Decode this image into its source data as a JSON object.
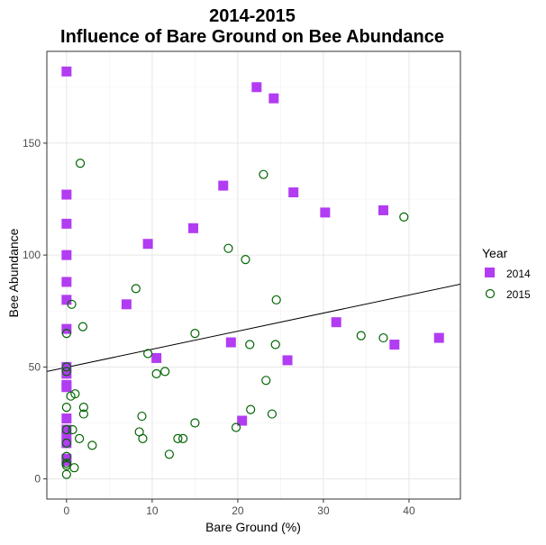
{
  "chart_data": {
    "type": "scatter",
    "title_line1": "2014-2015",
    "title_line2": "Influence of Bare Ground on Bee Abundance",
    "xlabel": "Bare Ground (%)",
    "ylabel": "Bee Abundance",
    "xlim": [
      -2.3,
      46.0
    ],
    "ylim": [
      -9.0,
      191.0
    ],
    "x_ticks": [
      0,
      10,
      20,
      30,
      40
    ],
    "y_ticks": [
      0,
      50,
      100,
      150
    ],
    "grid": true,
    "legend": {
      "title": "Year",
      "placement": "right"
    },
    "series": [
      {
        "name": "2014",
        "marker": "square",
        "color": "#b23cf2",
        "points": [
          [
            0,
            182
          ],
          [
            0,
            127
          ],
          [
            0,
            114
          ],
          [
            0,
            100
          ],
          [
            0,
            88
          ],
          [
            0,
            80
          ],
          [
            0,
            67
          ],
          [
            0,
            50
          ],
          [
            0,
            47
          ],
          [
            0,
            42
          ],
          [
            0,
            41
          ],
          [
            0,
            27
          ],
          [
            0,
            22
          ],
          [
            0,
            19
          ],
          [
            0,
            16
          ],
          [
            0,
            9
          ],
          [
            0,
            8
          ],
          [
            7,
            78
          ],
          [
            9.5,
            105
          ],
          [
            10.5,
            54
          ],
          [
            14.8,
            112
          ],
          [
            18.3,
            131
          ],
          [
            19.2,
            61
          ],
          [
            20.5,
            26
          ],
          [
            22.2,
            175
          ],
          [
            24.2,
            170
          ],
          [
            25.8,
            53
          ],
          [
            26.5,
            128
          ],
          [
            30.2,
            119
          ],
          [
            31.5,
            70
          ],
          [
            37,
            120
          ],
          [
            38.3,
            60
          ],
          [
            43.5,
            63
          ]
        ]
      },
      {
        "name": "2015",
        "marker": "open-circle",
        "color": "#006400",
        "points": [
          [
            1.6,
            141
          ],
          [
            0.6,
            78
          ],
          [
            0,
            65
          ],
          [
            1.9,
            68
          ],
          [
            0,
            50
          ],
          [
            0,
            48
          ],
          [
            0.5,
            37
          ],
          [
            1,
            38
          ],
          [
            0,
            32
          ],
          [
            2,
            32
          ],
          [
            2,
            29
          ],
          [
            0,
            22
          ],
          [
            0.7,
            22
          ],
          [
            1.5,
            18
          ],
          [
            0,
            16
          ],
          [
            3,
            15
          ],
          [
            0,
            10
          ],
          [
            0,
            7
          ],
          [
            0,
            6
          ],
          [
            0.9,
            5
          ],
          [
            0,
            2
          ],
          [
            8.1,
            85
          ],
          [
            9.5,
            56
          ],
          [
            10.5,
            47
          ],
          [
            11.5,
            48
          ],
          [
            8.8,
            28
          ],
          [
            8.5,
            21
          ],
          [
            8.9,
            18
          ],
          [
            13,
            18
          ],
          [
            13.6,
            18
          ],
          [
            12,
            11
          ],
          [
            15,
            65
          ],
          [
            15,
            25
          ],
          [
            18.9,
            103
          ],
          [
            20.9,
            98
          ],
          [
            21.4,
            60
          ],
          [
            23,
            136
          ],
          [
            23.3,
            44
          ],
          [
            24.4,
            60
          ],
          [
            24.5,
            80
          ],
          [
            21.5,
            31
          ],
          [
            19.8,
            23
          ],
          [
            24,
            29
          ],
          [
            34.4,
            64
          ],
          [
            37,
            63
          ],
          [
            39.4,
            117
          ]
        ]
      }
    ],
    "trendline": {
      "x": [
        -2.3,
        46.0
      ],
      "y": [
        48,
        87
      ]
    }
  }
}
